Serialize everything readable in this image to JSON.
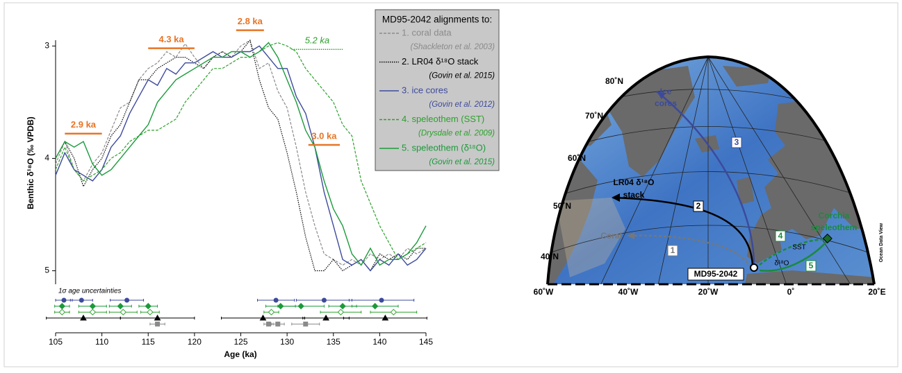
{
  "chart_data": {
    "type": "line",
    "x_label": "Age (ka)",
    "y_label": "Benthic δ¹⁸O (‰ VPDB)",
    "xlim": [
      105,
      145
    ],
    "xticks": [
      105,
      110,
      115,
      120,
      125,
      130,
      135,
      140,
      145
    ],
    "ylim": [
      5.12,
      2.93
    ],
    "yticks": [
      3,
      4,
      5
    ],
    "y_inverted": true,
    "x": [
      105,
      106,
      107,
      108,
      109,
      110,
      111,
      112,
      113,
      114,
      115,
      116,
      117,
      118,
      119,
      120,
      121,
      122,
      123,
      124,
      125,
      126,
      127,
      128,
      129,
      130,
      131,
      132,
      133,
      134,
      135,
      136,
      137,
      138,
      139,
      140,
      141,
      142,
      143,
      144,
      145
    ],
    "legend_title": "MD95-2042 alignments to:",
    "series": [
      {
        "name": "1. coral data",
        "source": "(Shackleton et al. 2003)",
        "color": "#8a8a8a",
        "line_style": "dashed",
        "values": [
          4.05,
          3.85,
          4.1,
          4.2,
          4.05,
          3.95,
          3.75,
          3.55,
          3.5,
          3.3,
          3.2,
          3.15,
          3.05,
          3.1,
          2.98,
          3.1,
          3.2,
          3.1,
          3.05,
          3.1,
          3.0,
          2.95,
          3.2,
          3.15,
          3.4,
          3.55,
          3.9,
          4.3,
          4.6,
          4.85,
          4.9,
          4.95,
          4.9,
          4.95,
          4.85,
          4.9,
          4.85,
          4.9,
          4.8,
          4.85,
          4.8
        ]
      },
      {
        "name": "2. LR04 δ¹⁸O stack",
        "source": "(Govin et al. 2015)",
        "color": "#000000",
        "line_style": "dotted",
        "values": [
          4.0,
          3.85,
          4.0,
          4.25,
          4.1,
          4.0,
          3.8,
          3.7,
          3.5,
          3.3,
          3.3,
          3.2,
          3.15,
          3.1,
          3.1,
          3.15,
          3.2,
          3.1,
          3.05,
          3.1,
          3.05,
          2.95,
          3.3,
          3.55,
          3.65,
          3.95,
          4.3,
          4.7,
          5.0,
          5.0,
          4.9,
          5.0,
          4.95,
          4.9,
          5.0,
          4.85,
          4.9,
          4.85,
          4.9,
          4.8,
          4.8
        ]
      },
      {
        "name": "3. ice cores",
        "source": "(Govin et al. 2012)",
        "color": "#3c4a9c",
        "line_style": "solid",
        "values": [
          4.15,
          3.95,
          4.1,
          4.15,
          4.2,
          4.1,
          3.9,
          3.8,
          3.6,
          3.45,
          3.3,
          3.35,
          3.2,
          3.25,
          3.15,
          3.15,
          3.1,
          3.05,
          3.1,
          3.1,
          3.05,
          3.05,
          3.0,
          3.1,
          3.2,
          3.2,
          3.45,
          3.6,
          3.9,
          4.3,
          4.6,
          4.9,
          4.95,
          4.9,
          5.0,
          4.9,
          4.95,
          4.85,
          4.95,
          4.9,
          4.8
        ]
      },
      {
        "name": "4. speleothem (SST)",
        "source": "(Drysdale et al. 2009)",
        "color": "#2ca02c",
        "line_style": "dashed",
        "values": [
          4.1,
          3.9,
          4.1,
          4.2,
          4.15,
          4.1,
          4.0,
          3.95,
          3.85,
          3.8,
          3.75,
          3.75,
          3.7,
          3.65,
          3.5,
          3.4,
          3.3,
          3.2,
          3.2,
          3.15,
          3.1,
          3.1,
          3.05,
          3.0,
          2.97,
          3.0,
          3.05,
          3.2,
          3.3,
          3.4,
          3.5,
          3.7,
          3.8,
          4.2,
          4.4,
          4.6,
          4.75,
          4.9,
          4.85,
          4.8,
          4.75
        ]
      },
      {
        "name": "5. speleothem (δ¹⁸O)",
        "source": "(Govin et al. 2015)",
        "color": "#1a9a3a",
        "line_style": "solid",
        "values": [
          4.0,
          3.85,
          3.9,
          3.85,
          4.05,
          4.15,
          4.1,
          4.0,
          3.9,
          3.8,
          3.7,
          3.5,
          3.4,
          3.3,
          3.25,
          3.2,
          3.15,
          3.1,
          3.1,
          3.05,
          3.05,
          3.1,
          3.05,
          2.97,
          3.1,
          3.3,
          3.5,
          3.75,
          3.9,
          4.2,
          4.45,
          4.6,
          4.85,
          4.95,
          4.8,
          4.95,
          4.9,
          4.9,
          4.85,
          4.75,
          4.6
        ]
      }
    ],
    "annotations": [
      {
        "text": "2.9 ka",
        "x0": 106,
        "x1": 110,
        "y": 3.78,
        "color": "#e87425",
        "line_style": "solid"
      },
      {
        "text": "4.3 ka",
        "x0": 115,
        "x1": 120,
        "y": 3.02,
        "color": "#e87425",
        "line_style": "solid"
      },
      {
        "text": "2.8 ka",
        "x0": 124.5,
        "x1": 127.5,
        "y": 2.86,
        "color": "#e87425",
        "line_style": "solid"
      },
      {
        "text": "5.2 ka",
        "x0": 130.5,
        "x1": 136,
        "y": 3.03,
        "color": "#2ca02c",
        "line_style": "dotted"
      },
      {
        "text": "3.0 ka",
        "x0": 132.3,
        "x1": 135.7,
        "y": 3.88,
        "color": "#e87425",
        "line_style": "solid"
      }
    ],
    "uncertainty_title": "1σ age uncertainties",
    "age_uncertainties": [
      {
        "marker": "circle",
        "filled": true,
        "color": "#3c4a9c",
        "x": [
          105.9,
          107.8,
          112.7,
          128.8,
          134,
          140.2
        ],
        "err": [
          0.9,
          1.2,
          1.8,
          2,
          3,
          3.5
        ]
      },
      {
        "marker": "diamond",
        "filled": true,
        "color": "#1a9a3a",
        "x": [
          105.7,
          109,
          112,
          115,
          129.3,
          131.5,
          136,
          139.5
        ],
        "err": [
          0.8,
          1.5,
          1.2,
          1,
          1.6,
          2.5,
          1.5,
          2.5
        ]
      },
      {
        "marker": "diamond",
        "filled": false,
        "color": "#2ca02c",
        "x": [
          105.7,
          109,
          112.3,
          115.2,
          128.3,
          135.8,
          141.5
        ],
        "err": [
          0.8,
          1.5,
          1.5,
          1,
          0.8,
          2.2,
          2.5
        ]
      },
      {
        "marker": "triangle",
        "filled": true,
        "color": "#000000",
        "x": [
          108,
          116,
          127.4,
          134.2,
          140.6
        ],
        "err": [
          4,
          4,
          4.5,
          2.5,
          4.5
        ]
      },
      {
        "marker": "square",
        "filled": true,
        "color": "#8a8a8a",
        "x": [
          116,
          128,
          129,
          132
        ],
        "err": [
          0.8,
          0.5,
          0.7,
          1.5
        ]
      }
    ]
  },
  "map": {
    "lat_labels": [
      "80˚N",
      "70˚N",
      "60˚N",
      "50˚N",
      "40˚N"
    ],
    "lon_labels": [
      "60˚W",
      "40˚W",
      "20˚W",
      "0˚",
      "20˚E"
    ],
    "ice_cores": [
      "Ice",
      "cores"
    ],
    "lr04": [
      "LR04 δ¹⁸O",
      "stack"
    ],
    "coral": "Coral",
    "corchia": [
      "Corchia",
      "speleothem"
    ],
    "site": "MD95-2042",
    "sst": "SST",
    "d18o": "δ¹⁸O",
    "arrow_numbers": [
      "1",
      "2",
      "3",
      "4",
      "5"
    ],
    "credit": "Ocean Data View"
  }
}
